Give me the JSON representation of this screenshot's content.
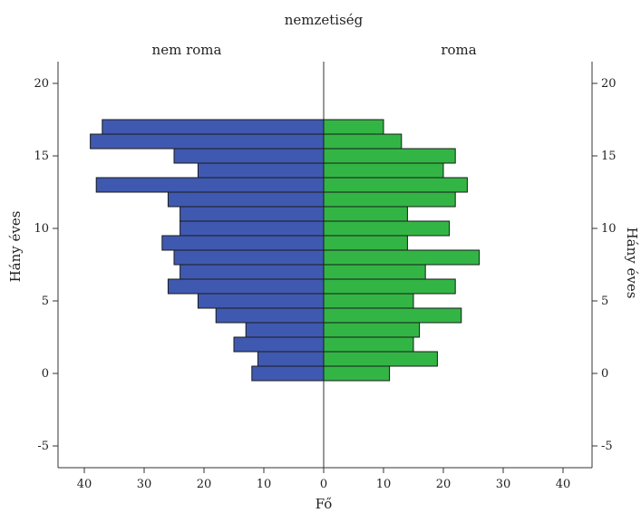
{
  "chart_data": {
    "type": "bar",
    "orientation": "horizontal",
    "layout": "population-pyramid",
    "title": "nemzetiség",
    "xlabel": "Fő",
    "ylabel": "Hány éves",
    "ylim": [
      -6.5,
      21.5
    ],
    "xlim": [
      0,
      45
    ],
    "x_ticks": [
      40,
      30,
      20,
      10,
      0
    ],
    "y_ticks": [
      20,
      15,
      10,
      5,
      0,
      -5
    ],
    "y": [
      17,
      16,
      15,
      14,
      13,
      12,
      11,
      10,
      9,
      8,
      7,
      6,
      5,
      4,
      3,
      2,
      1,
      0
    ],
    "series": [
      {
        "name": "nem roma",
        "color": "#4059b0",
        "values": [
          37,
          39,
          25,
          21,
          38,
          26,
          24,
          24,
          27,
          25,
          24,
          26,
          21,
          18,
          13,
          15,
          11,
          12
        ]
      },
      {
        "name": "roma",
        "color": "#33b545",
        "values": [
          10,
          13,
          22,
          20,
          24,
          22,
          14,
          21,
          14,
          26,
          17,
          22,
          15,
          23,
          16,
          15,
          19,
          11
        ]
      }
    ]
  }
}
